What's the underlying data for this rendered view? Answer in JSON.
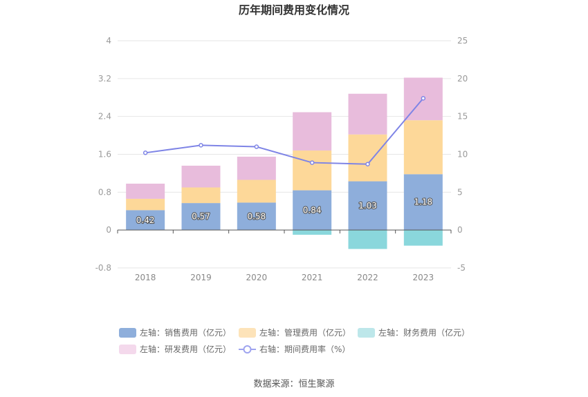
{
  "chart_data": {
    "type": "bar",
    "title": "历年期间费用变化情况",
    "categories": [
      "2018",
      "2019",
      "2020",
      "2021",
      "2022",
      "2023"
    ],
    "left_axis": {
      "ylim": [
        -0.8,
        4
      ],
      "ticks": [
        "-0.8",
        "0",
        "0.8",
        "1.6",
        "2.4",
        "3.2",
        "4"
      ]
    },
    "right_axis": {
      "ylim": [
        -5,
        25
      ],
      "ticks": [
        "-5",
        "0",
        "5",
        "10",
        "15",
        "20",
        "25"
      ]
    },
    "series": [
      {
        "name": "左轴：销售费用（亿元）",
        "kind": "stacked-bar",
        "axis": "left",
        "color": "#8eaedb",
        "values": [
          0.42,
          0.57,
          0.58,
          0.84,
          1.03,
          1.18
        ],
        "labels": [
          "0.42",
          "0.57",
          "0.58",
          "0.84",
          "1.03",
          "1.18"
        ]
      },
      {
        "name": "左轴：管理费用（亿元）",
        "kind": "stacked-bar",
        "axis": "left",
        "color": "#fdd899",
        "values": [
          0.24,
          0.33,
          0.48,
          0.84,
          0.99,
          1.14
        ]
      },
      {
        "name": "左轴：财务费用（亿元）",
        "kind": "stacked-bar",
        "axis": "left",
        "color": "#8ad7dc",
        "values": [
          0.0,
          0.0,
          0.0,
          -0.1,
          -0.4,
          -0.33
        ]
      },
      {
        "name": "左轴：研发费用（亿元）",
        "kind": "stacked-bar",
        "axis": "left",
        "color": "#e8bcdc",
        "values": [
          0.32,
          0.46,
          0.49,
          0.81,
          0.86,
          0.9
        ]
      },
      {
        "name": "右轴：期间费用率（%）",
        "kind": "line",
        "axis": "right",
        "color": "#7e84e6",
        "values": [
          10.2,
          11.2,
          11.0,
          8.9,
          8.7,
          17.4
        ]
      }
    ],
    "legend": {
      "position": "bottom",
      "items": [
        {
          "label": "左轴：销售费用（亿元）",
          "swatch": "#8eaedb",
          "type": "box"
        },
        {
          "label": "左轴：管理费用（亿元）",
          "swatch": "#fde3b9",
          "type": "box"
        },
        {
          "label": "左轴：财务费用（亿元）",
          "swatch": "#bde7ea",
          "type": "box"
        },
        {
          "label": "左轴：研发费用（亿元）",
          "swatch": "#f4d9ec",
          "type": "box"
        },
        {
          "label": "右轴：期间费用率（%）",
          "swatch": "#9ea3ef",
          "type": "line"
        }
      ]
    },
    "grid": true,
    "source": "数据来源：恒生聚源"
  }
}
